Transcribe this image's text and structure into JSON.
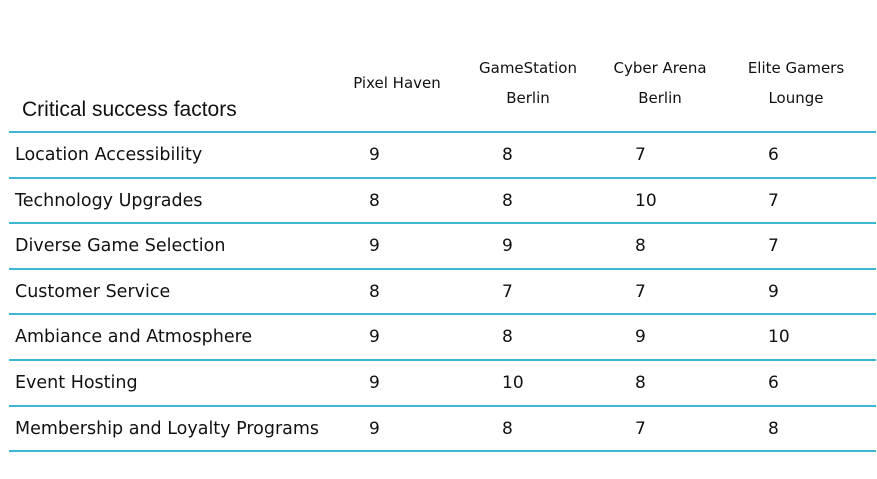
{
  "table": {
    "title": "Critical success factors",
    "columns": [
      {
        "line1": "Pixel Haven",
        "line2": ""
      },
      {
        "line1": "GameStation",
        "line2": "Berlin"
      },
      {
        "line1": "Cyber Arena",
        "line2": "Berlin"
      },
      {
        "line1": "Elite Gamers",
        "line2": "Lounge"
      }
    ],
    "rows": [
      {
        "factor": "Location Accessibility",
        "values": [
          "9",
          "8",
          "7",
          "6"
        ]
      },
      {
        "factor": "Technology Upgrades",
        "values": [
          "8",
          "8",
          "10",
          "7"
        ]
      },
      {
        "factor": "Diverse Game Selection",
        "values": [
          "9",
          "9",
          "8",
          "7"
        ]
      },
      {
        "factor": "Customer Service",
        "values": [
          "8",
          "7",
          "7",
          "9"
        ]
      },
      {
        "factor": "Ambiance and Atmosphere",
        "values": [
          "9",
          "8",
          "9",
          "10"
        ]
      },
      {
        "factor": "Event Hosting",
        "values": [
          "9",
          "10",
          "8",
          "6"
        ]
      },
      {
        "factor": "Membership and Loyalty Programs",
        "values": [
          "9",
          "8",
          "7",
          "8"
        ]
      }
    ],
    "line_color": "#3fb6d4"
  }
}
